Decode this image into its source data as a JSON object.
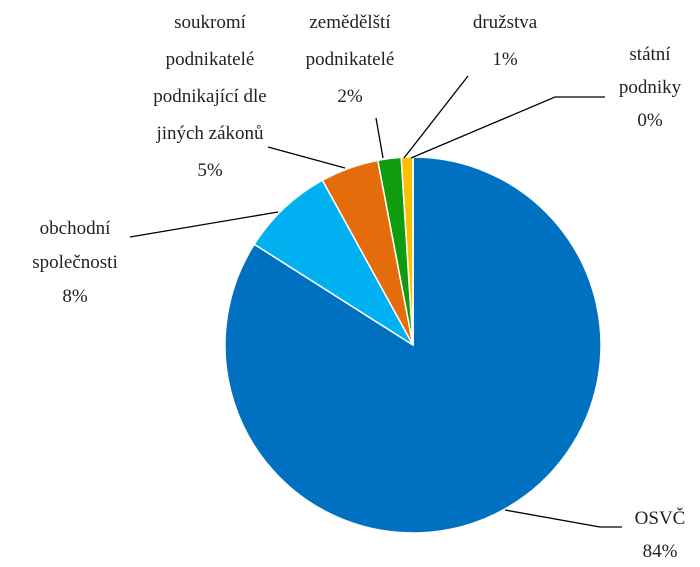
{
  "chart_data": {
    "type": "pie",
    "categories": [
      "OSVČ",
      "obchodní společnosti",
      "soukromí podnikatelé podnikající dle jiných zákonů",
      "zemědělští podnikatelé",
      "družstva",
      "státní podniky"
    ],
    "values": [
      84,
      8,
      5,
      2,
      1,
      0
    ],
    "value_labels": [
      "84%",
      "8%",
      "5%",
      "2%",
      "1%",
      "0%"
    ],
    "colors": [
      "#0070c0",
      "#00b0f0",
      "#e46c0a",
      "#0f9d0f",
      "#ffc000",
      "#a5a5a5"
    ]
  }
}
